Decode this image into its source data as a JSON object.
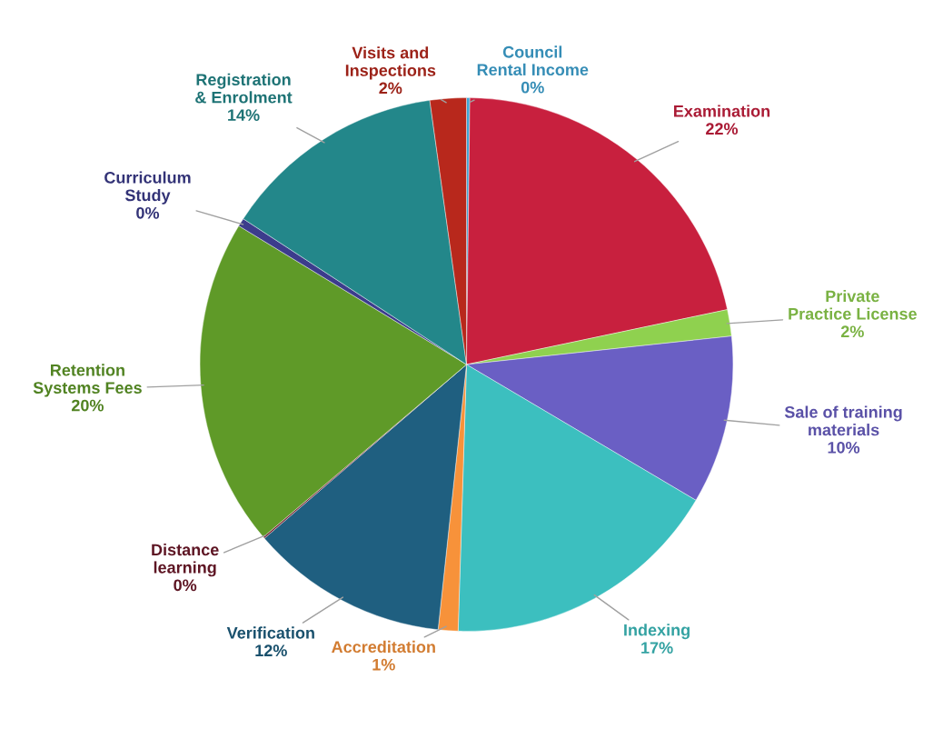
{
  "chart_data": {
    "type": "pie",
    "categories": [
      "Council Rental Income",
      "Examination",
      "Private Practice License",
      "Sale of training materials",
      "Indexing",
      "Accreditation",
      "Verification",
      "Distance learning",
      "Retention Systems Fees",
      "Curriculum Study",
      "Registration & Enrolment",
      "Visits and Inspections"
    ],
    "values": [
      0.2,
      21.5,
      1.6,
      10.2,
      17.0,
      1.2,
      12.0,
      0.1,
      19.9,
      0.5,
      13.6,
      2.2
    ],
    "value_labels": [
      "0%",
      "22%",
      "2%",
      "10%",
      "17%",
      "1%",
      "12%",
      "0%",
      "20%",
      "0%",
      "14%",
      "2%"
    ],
    "colors": [
      "#3ea6d6",
      "#c8203e",
      "#8fd14f",
      "#6a5fc4",
      "#3cbfbf",
      "#f7923a",
      "#1f5f80",
      "#6e1a2a",
      "#5f9a28",
      "#3c3c8c",
      "#23878a",
      "#b8281c"
    ],
    "legend": false
  }
}
